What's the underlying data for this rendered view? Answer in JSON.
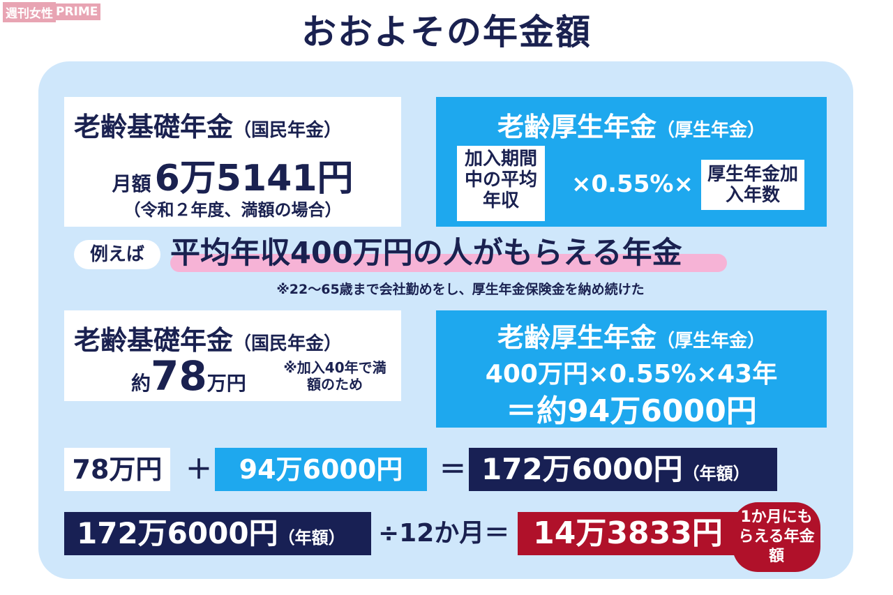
{
  "logo": {
    "part1": "週刊女性",
    "part2": "PRIME"
  },
  "title": "おおよその年金額",
  "formula": {
    "kiso": {
      "name": "老齢基礎年金",
      "paren": "（国民年金）",
      "monthly_label": "月額",
      "monthly_value": "6万5141円",
      "note": "（令和２年度、満額の場合）"
    },
    "kosei": {
      "name": "老齢厚生年金",
      "paren": "（厚生年金）",
      "left_box": "加入期間中の平均年収",
      "rate": "×0.55%×",
      "right_box": "厚生年金加入年数"
    }
  },
  "example": {
    "tag": "例えば",
    "headline": "平均年収400万円の人がもらえる年金",
    "note": "※22〜65歳まで会社勤めをし、厚生年金保険金を納め続けた"
  },
  "calc": {
    "kiso": {
      "name": "老齢基礎年金",
      "paren": "（国民年金）",
      "prefix": "約",
      "value": "78",
      "unit": "万円",
      "note": "※加入40年で満額のため"
    },
    "kosei": {
      "name": "老齢厚生年金",
      "paren": "（厚生年金）",
      "line1": "400万円×0.55%×43年",
      "line2": "＝約94万6000円"
    }
  },
  "sum": {
    "a": "78万円",
    "plus": "＋",
    "b": "94万6000円",
    "eq": "＝",
    "total": "172万6000円",
    "total_paren": "（年額）"
  },
  "monthly": {
    "annual": "172万6000円",
    "annual_paren": "（年額）",
    "div": "÷12か月＝",
    "result": "14万3833円",
    "badge": "1か月にもらえる年金額"
  },
  "colors": {
    "navy": "#182054",
    "cyan": "#1ea8ee",
    "red": "#b0112a",
    "panel": "#cfe7fb",
    "pink": "#f6b3d6"
  }
}
